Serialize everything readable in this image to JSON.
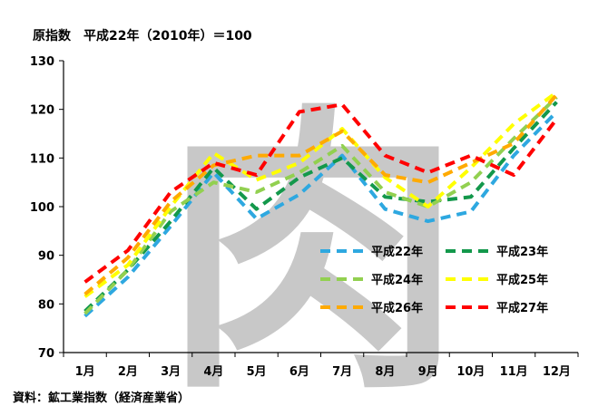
{
  "chart_data": {
    "type": "line",
    "title": "原指数　平成22年（2010年）＝100",
    "source": "資料：鉱工業指数（経済産業省）",
    "watermark": "肉",
    "categories": [
      "1月",
      "2月",
      "3月",
      "4月",
      "5月",
      "6月",
      "7月",
      "8月",
      "9月",
      "10月",
      "11月",
      "12月"
    ],
    "ylim": [
      70,
      130
    ],
    "yticks": [
      70,
      80,
      90,
      100,
      110,
      120,
      130
    ],
    "legend_position": "lower-right",
    "series": [
      {
        "name": "平成22年",
        "color": "#2ea8e0",
        "values": [
          77.5,
          85.5,
          96,
          107,
          97.5,
          102.5,
          110.5,
          99.5,
          97,
          99,
          110.5,
          119.5
        ]
      },
      {
        "name": "平成23年",
        "color": "#13984b",
        "values": [
          78.5,
          87,
          97,
          108,
          99.5,
          106,
          110,
          102,
          101,
          102,
          112,
          121.5
        ]
      },
      {
        "name": "平成24年",
        "color": "#92d050",
        "values": [
          78,
          87,
          99,
          105,
          103,
          107,
          112.5,
          103,
          100,
          105,
          114,
          122.5
        ]
      },
      {
        "name": "平成25年",
        "color": "#ffff00",
        "values": [
          81.5,
          88,
          100,
          111,
          105.5,
          109,
          116,
          106,
          100,
          108,
          117,
          123.5
        ]
      },
      {
        "name": "平成26年",
        "color": "#ffaa00",
        "values": [
          82,
          89.5,
          101,
          108.5,
          110.5,
          110.5,
          115.5,
          106.5,
          105,
          109,
          113,
          123
        ]
      },
      {
        "name": "平成27年",
        "color": "#ff0000",
        "values": [
          84.5,
          91,
          103,
          109,
          106.5,
          119.5,
          121,
          110.5,
          107,
          110.5,
          106.5,
          118
        ]
      }
    ]
  }
}
